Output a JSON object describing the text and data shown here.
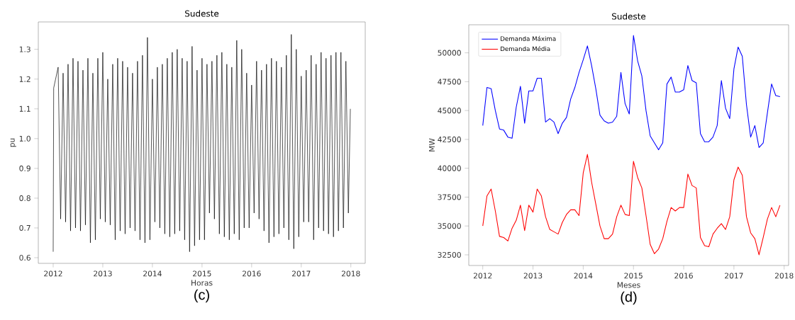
{
  "chart_data": [
    {
      "type": "line",
      "title": "Sudeste",
      "xlabel": "Horas",
      "ylabel": "pu",
      "annotations": [
        "(c)"
      ],
      "xlim": [
        2011.7,
        2018.29
      ],
      "ylim": [
        0.581,
        1.392
      ],
      "xticks": [
        2012,
        2013,
        2014,
        2015,
        2016,
        2017,
        2018
      ],
      "yticks": [
        0.6,
        0.7,
        0.8,
        0.9,
        {
          "value": 1.0,
          "label": "1.0"
        },
        1.1,
        1.2,
        1.3
      ],
      "grid": false,
      "legend": false,
      "series": [
        {
          "color": "#000000",
          "x": [
            2012.0,
            2012.01,
            2012.1,
            2012.15,
            2012.2,
            2012.25,
            2012.3,
            2012.35,
            2012.4,
            2012.45,
            2012.5,
            2012.55,
            2012.6,
            2012.65,
            2012.7,
            2012.75,
            2012.8,
            2012.85,
            2012.9,
            2012.95,
            2013.0,
            2013.05,
            2013.1,
            2013.15,
            2013.2,
            2013.25,
            2013.3,
            2013.35,
            2013.4,
            2013.45,
            2013.5,
            2013.55,
            2013.6,
            2013.65,
            2013.7,
            2013.75,
            2013.8,
            2013.85,
            2013.9,
            2013.95,
            2014.0,
            2014.05,
            2014.1,
            2014.15,
            2014.2,
            2014.25,
            2014.3,
            2014.35,
            2014.4,
            2014.45,
            2014.5,
            2014.55,
            2014.6,
            2014.65,
            2014.7,
            2014.75,
            2014.8,
            2014.85,
            2014.9,
            2014.95,
            2015.0,
            2015.05,
            2015.1,
            2015.15,
            2015.2,
            2015.25,
            2015.3,
            2015.35,
            2015.4,
            2015.45,
            2015.5,
            2015.55,
            2015.6,
            2015.65,
            2015.7,
            2015.75,
            2015.8,
            2015.85,
            2015.9,
            2015.95,
            2016.0,
            2016.05,
            2016.1,
            2016.15,
            2016.2,
            2016.25,
            2016.3,
            2016.35,
            2016.4,
            2016.45,
            2016.5,
            2016.55,
            2016.6,
            2016.65,
            2016.7,
            2016.75,
            2016.8,
            2016.85,
            2016.9,
            2016.95,
            2017.0,
            2017.05,
            2017.1,
            2017.15,
            2017.2,
            2017.25,
            2017.3,
            2017.35,
            2017.4,
            2017.45,
            2017.5,
            2017.55,
            2017.6,
            2017.65,
            2017.7,
            2017.75,
            2017.8,
            2017.85,
            2017.9,
            2017.95,
            2017.99
          ],
          "values": [
            0.62,
            1.17,
            1.24,
            0.73,
            1.22,
            0.72,
            1.25,
            0.69,
            1.27,
            0.7,
            1.26,
            0.69,
            1.23,
            0.71,
            1.27,
            0.65,
            1.22,
            0.66,
            1.27,
            0.73,
            1.29,
            0.72,
            1.2,
            0.71,
            1.25,
            0.66,
            1.27,
            0.69,
            1.26,
            0.68,
            1.24,
            0.7,
            1.22,
            0.69,
            1.26,
            0.66,
            1.28,
            0.65,
            1.34,
            0.66,
            1.2,
            0.72,
            1.24,
            0.7,
            1.25,
            0.68,
            1.27,
            0.67,
            1.29,
            0.68,
            1.3,
            0.69,
            1.27,
            0.66,
            1.26,
            0.62,
            1.31,
            0.64,
            1.23,
            0.66,
            1.27,
            0.66,
            1.25,
            0.75,
            1.26,
            0.73,
            1.28,
            0.68,
            1.29,
            0.67,
            1.25,
            0.66,
            1.24,
            0.68,
            1.33,
            0.66,
            1.3,
            0.7,
            1.22,
            0.7,
            1.18,
            0.75,
            1.26,
            0.73,
            1.23,
            0.69,
            1.25,
            0.65,
            1.27,
            0.67,
            1.26,
            0.68,
            1.24,
            0.7,
            1.28,
            0.66,
            1.35,
            0.63,
            1.3,
            0.67,
            1.21,
            0.72,
            1.23,
            0.72,
            1.28,
            0.66,
            1.25,
            0.7,
            1.29,
            0.69,
            1.27,
            0.68,
            1.28,
            0.67,
            1.29,
            0.69,
            1.29,
            0.7,
            1.26,
            0.75,
            1.1
          ]
        }
      ]
    },
    {
      "type": "line",
      "title": "Sudeste",
      "xlabel": "Meses",
      "ylabel": "MW",
      "annotations": [
        "(d)"
      ],
      "xlim": [
        "2011-09-21",
        "2018-02-03"
      ],
      "ylim": [
        31578,
        52430
      ],
      "xticks": [
        {
          "value": "2012-01-01",
          "label": "2012"
        },
        {
          "value": "2013-01-01",
          "label": "2013"
        },
        {
          "value": "2014-01-01",
          "label": "2014"
        },
        {
          "value": "2015-01-01",
          "label": "2015"
        },
        {
          "value": "2016-01-01",
          "label": "2016"
        },
        {
          "value": "2017-01-01",
          "label": "2017"
        },
        {
          "value": "2018-01-01",
          "label": "2018"
        }
      ],
      "yticks": [
        32500,
        35000,
        37500,
        40000,
        42500,
        45000,
        47500,
        50000
      ],
      "grid": false,
      "legend": "top left",
      "x": [
        "2012-01",
        "2012-02",
        "2012-03",
        "2012-04",
        "2012-05",
        "2012-06",
        "2012-07",
        "2012-08",
        "2012-09",
        "2012-10",
        "2012-11",
        "2012-12",
        "2013-01",
        "2013-02",
        "2013-03",
        "2013-04",
        "2013-05",
        "2013-06",
        "2013-07",
        "2013-08",
        "2013-09",
        "2013-10",
        "2013-11",
        "2013-12",
        "2014-01",
        "2014-02",
        "2014-03",
        "2014-04",
        "2014-05",
        "2014-06",
        "2014-07",
        "2014-08",
        "2014-09",
        "2014-10",
        "2014-11",
        "2014-12",
        "2015-01",
        "2015-02",
        "2015-03",
        "2015-04",
        "2015-05",
        "2015-06",
        "2015-07",
        "2015-08",
        "2015-09",
        "2015-10",
        "2015-11",
        "2015-12",
        "2016-01",
        "2016-02",
        "2016-03",
        "2016-04",
        "2016-05",
        "2016-06",
        "2016-07",
        "2016-08",
        "2016-09",
        "2016-10",
        "2016-11",
        "2016-12",
        "2017-01",
        "2017-02",
        "2017-03",
        "2017-04",
        "2017-05",
        "2017-06",
        "2017-07",
        "2017-08",
        "2017-09",
        "2017-10",
        "2017-11",
        "2017-12"
      ],
      "series": [
        {
          "name": "Demanda Máxima",
          "color": "#0000ff",
          "values": [
            43700,
            47000,
            46900,
            45000,
            43400,
            43300,
            42700,
            42600,
            45300,
            47100,
            43900,
            46700,
            46700,
            47800,
            47800,
            44000,
            44300,
            44000,
            43000,
            43900,
            44400,
            46000,
            47000,
            48300,
            49400,
            50600,
            48900,
            46900,
            44600,
            44100,
            43900,
            44000,
            44500,
            48300,
            45600,
            44700,
            51500,
            49300,
            48000,
            45000,
            42800,
            42200,
            41600,
            42200,
            47300,
            47900,
            46600,
            46600,
            46800,
            48900,
            47600,
            47400,
            43000,
            42300,
            42300,
            42700,
            43700,
            47600,
            45200,
            44300,
            48600,
            50500,
            49700,
            45500,
            42700,
            43700,
            41800,
            42200,
            44800,
            47300,
            46300,
            46200
          ]
        },
        {
          "name": "Demanda Média",
          "color": "#ff0000",
          "values": [
            35000,
            37600,
            38200,
            36300,
            34100,
            34000,
            33700,
            34800,
            35500,
            36800,
            34600,
            36800,
            36200,
            38200,
            37600,
            35800,
            34700,
            34500,
            34300,
            35300,
            36000,
            36400,
            36400,
            35900,
            39600,
            41200,
            38800,
            36900,
            35000,
            33900,
            33900,
            34300,
            35800,
            36800,
            36000,
            35900,
            40600,
            39200,
            38300,
            35900,
            33400,
            32600,
            33000,
            33900,
            35400,
            36600,
            36300,
            36600,
            36600,
            39500,
            38500,
            38300,
            34000,
            33300,
            33200,
            34300,
            34800,
            35200,
            34700,
            35800,
            39000,
            40100,
            39400,
            35800,
            34400,
            33900,
            32500,
            34000,
            35600,
            36600,
            35800,
            36800
          ]
        }
      ]
    }
  ]
}
